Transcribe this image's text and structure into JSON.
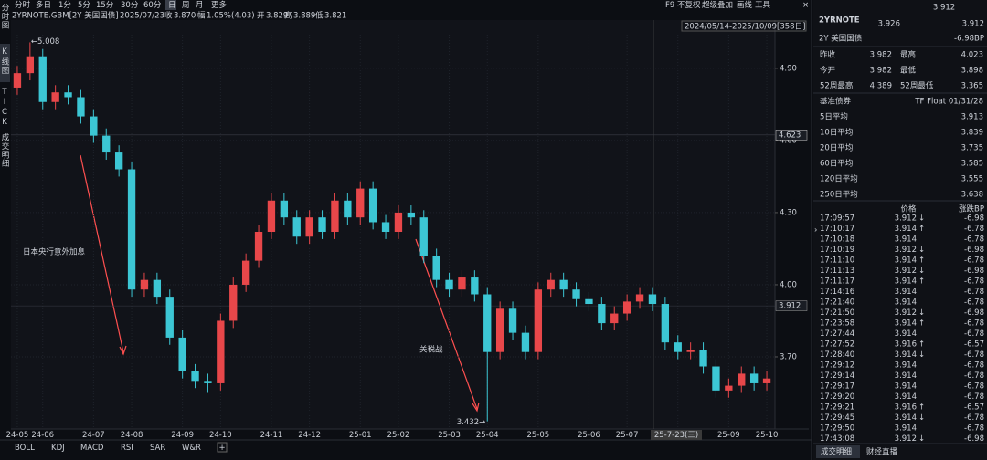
{
  "toolbar": {
    "left": [
      "分时",
      "多日",
      "1分",
      "5分",
      "15分",
      "30分",
      "60分",
      "日",
      "周",
      "月",
      "更多"
    ],
    "right": [
      "F9",
      "不复权",
      "超级叠加",
      "画线",
      "工具"
    ]
  },
  "side_tabs": [
    "分时图",
    "K线图",
    "TICK",
    "成交明细"
  ],
  "info": {
    "symbol": "2YRNOTE.GBM[2Y 美国国债]",
    "date": "2025/07/23",
    "items": [
      {
        "label": "收",
        "value": "3.870",
        "color": "#2fd06a"
      },
      {
        "label": "幅",
        "value": "1.05%(4.03)",
        "color": "#2fd06a"
      },
      {
        "label": "开",
        "value": "3.829",
        "color": "#e6e6e6"
      },
      {
        "label": "高",
        "value": "3.889",
        "color": "#2fd06a"
      },
      {
        "label": "低",
        "value": "3.821",
        "color": "#ff4d4d"
      }
    ]
  },
  "range": "2024/05/14-2025/10/09[358日]",
  "chart_data": {
    "type": "candlestick",
    "up_color": "#e8474a",
    "down_color": "#3cc6d4",
    "categories": [
      "24-05",
      null,
      "24-06",
      null,
      null,
      null,
      "24-07",
      null,
      null,
      "24-08",
      null,
      null,
      null,
      "24-09",
      null,
      null,
      "24-10",
      null,
      null,
      null,
      "24-11",
      null,
      null,
      "24-12",
      null,
      null,
      null,
      "25-01",
      null,
      null,
      "25-02",
      null,
      null,
      null,
      "25-03",
      null,
      null,
      "25-04",
      null,
      null,
      null,
      "25-05",
      null,
      null,
      null,
      "25-06",
      null,
      null,
      "25-07",
      null,
      null,
      null,
      "25-7-23(三)",
      null,
      null,
      null,
      "25-09",
      null,
      null,
      "25-10"
    ],
    "open": [
      4.82,
      4.88,
      4.95,
      4.76,
      4.8,
      4.78,
      4.7,
      4.62,
      4.55,
      4.48,
      3.98,
      4.02,
      3.95,
      3.78,
      3.64,
      3.6,
      3.59,
      3.85,
      4.0,
      4.1,
      4.22,
      4.35,
      4.28,
      4.2,
      4.28,
      4.22,
      4.35,
      4.28,
      4.4,
      4.26,
      4.22,
      4.3,
      4.28,
      4.12,
      4.02,
      3.98,
      4.03,
      3.96,
      3.72,
      3.9,
      3.8,
      3.72,
      3.98,
      4.02,
      3.98,
      3.94,
      3.92,
      3.84,
      3.88,
      3.93,
      3.96,
      3.92,
      3.76,
      3.72,
      3.73,
      3.66,
      3.56,
      3.58,
      3.63,
      3.59
    ],
    "high": [
      4.91,
      5.008,
      4.98,
      4.83,
      4.83,
      4.81,
      4.73,
      4.65,
      4.58,
      4.51,
      4.05,
      4.05,
      3.98,
      3.81,
      3.67,
      3.63,
      3.88,
      4.03,
      4.13,
      4.25,
      4.38,
      4.38,
      4.31,
      4.31,
      4.31,
      4.38,
      4.38,
      4.43,
      4.43,
      4.29,
      4.33,
      4.33,
      4.31,
      4.15,
      4.05,
      4.06,
      4.06,
      3.99,
      3.93,
      3.93,
      3.83,
      4.01,
      4.05,
      4.05,
      4.01,
      3.97,
      3.95,
      3.91,
      3.96,
      3.99,
      3.99,
      3.95,
      3.79,
      3.76,
      3.76,
      3.69,
      3.61,
      3.66,
      3.66,
      3.64
    ],
    "low": [
      4.79,
      4.85,
      4.73,
      4.73,
      4.75,
      4.67,
      4.59,
      4.52,
      4.45,
      3.95,
      3.95,
      3.92,
      3.75,
      3.61,
      3.57,
      3.55,
      3.56,
      3.82,
      3.97,
      4.07,
      4.19,
      4.25,
      4.17,
      4.17,
      4.19,
      4.19,
      4.25,
      4.25,
      4.23,
      4.19,
      4.19,
      4.25,
      4.09,
      3.99,
      3.95,
      3.95,
      3.93,
      3.432,
      3.69,
      3.77,
      3.69,
      3.69,
      3.95,
      3.95,
      3.91,
      3.89,
      3.81,
      3.81,
      3.85,
      3.9,
      3.89,
      3.73,
      3.69,
      3.69,
      3.63,
      3.53,
      3.53,
      3.55,
      3.56,
      3.56
    ],
    "close": [
      4.88,
      4.95,
      4.76,
      4.8,
      4.78,
      4.7,
      4.62,
      4.55,
      4.48,
      3.98,
      4.02,
      3.95,
      3.78,
      3.64,
      3.6,
      3.59,
      3.85,
      4.0,
      4.1,
      4.22,
      4.35,
      4.28,
      4.2,
      4.28,
      4.22,
      4.35,
      4.28,
      4.4,
      4.26,
      4.22,
      4.3,
      4.28,
      4.12,
      4.02,
      3.98,
      4.03,
      3.96,
      3.72,
      3.9,
      3.8,
      3.72,
      3.98,
      4.02,
      3.98,
      3.94,
      3.92,
      3.84,
      3.88,
      3.93,
      3.96,
      3.92,
      3.76,
      3.72,
      3.73,
      3.66,
      3.56,
      3.58,
      3.63,
      3.59,
      3.61
    ],
    "ylim": [
      3.4,
      5.04
    ],
    "yticks": [
      {
        "value": 3.7,
        "label": "3.70"
      },
      {
        "value": 4.0,
        "label": "4.00"
      },
      {
        "value": 4.3,
        "label": "4.30"
      },
      {
        "value": 4.6,
        "label": "4.60"
      },
      {
        "value": 4.9,
        "label": "4.90"
      }
    ],
    "price_lines": [
      {
        "value": 4.623,
        "label": "4.623",
        "color": "#cfcfcf"
      },
      {
        "value": 3.912,
        "label": "3.912",
        "color": "#9a9a9a"
      }
    ],
    "extremes": [
      {
        "label": "←5.008",
        "color": "#ff5a5a"
      },
      {
        "label": "3.432→",
        "color": "#2fd06a"
      }
    ],
    "annotations": [
      "日本央行意外加息",
      "关税战"
    ]
  },
  "indicators": [
    "BOLL",
    "KDJ",
    "MACD",
    "RSI",
    "SAR",
    "W&R"
  ],
  "quote": {
    "top": "3.912",
    "symbol": "2YRNOTE",
    "price": "3.926",
    "last": "3.912",
    "name": "2Y 美国国债",
    "change": "-6.98BP"
  },
  "stats": [
    [
      {
        "label": "昨收",
        "value": "3.982"
      },
      {
        "label": "最高",
        "value": "4.023",
        "color": "#2fd06a"
      }
    ],
    [
      {
        "label": "今开",
        "value": "3.982"
      },
      {
        "label": "最低",
        "value": "3.898",
        "color": "#ff4d4d"
      }
    ],
    [
      {
        "label": "52周最高",
        "value": "4.389"
      },
      {
        "label": "52周最低",
        "value": "3.365"
      }
    ]
  ],
  "stats2": [
    [
      "基准债券",
      "TF Float 01/31/28"
    ],
    [
      "5日平均",
      "3.913"
    ],
    [
      "10日平均",
      "3.839"
    ],
    [
      "20日平均",
      "3.735"
    ],
    [
      "60日平均",
      "3.585"
    ],
    [
      "120日平均",
      "3.555"
    ],
    [
      "250日平均",
      "3.638"
    ]
  ],
  "trades": {
    "headers": [
      "价格",
      "涨跌BP"
    ],
    "rows": [
      [
        "17:09:57",
        "3.912",
        "↓",
        "-6.98"
      ],
      [
        "17:10:17",
        "3.914",
        "↑",
        "-6.78"
      ],
      [
        "17:10:18",
        "3.914",
        null,
        "-6.78"
      ],
      [
        "17:10:19",
        "3.912",
        "↓",
        "-6.98"
      ],
      [
        "17:11:10",
        "3.914",
        "↑",
        "-6.78"
      ],
      [
        "17:11:13",
        "3.912",
        "↓",
        "-6.98"
      ],
      [
        "17:11:17",
        "3.914",
        "↑",
        "-6.78"
      ],
      [
        "17:14:16",
        "3.914",
        null,
        "-6.78"
      ],
      [
        "17:21:40",
        "3.914",
        null,
        "-6.78"
      ],
      [
        "17:21:50",
        "3.912",
        "↓",
        "-6.98"
      ],
      [
        "17:23:58",
        "3.914",
        "↑",
        "-6.78"
      ],
      [
        "17:27:44",
        "3.914",
        null,
        "-6.78"
      ],
      [
        "17:27:52",
        "3.916",
        "↑",
        "-6.57"
      ],
      [
        "17:28:40",
        "3.914",
        "↓",
        "-6.78"
      ],
      [
        "17:29:12",
        "3.914",
        null,
        "-6.78"
      ],
      [
        "17:29:14",
        "3.914",
        null,
        "-6.78"
      ],
      [
        "17:29:17",
        "3.914",
        null,
        "-6.78"
      ],
      [
        "17:29:20",
        "3.914",
        null,
        "-6.78"
      ],
      [
        "17:29:21",
        "3.916",
        "↑",
        "-6.57"
      ],
      [
        "17:29:45",
        "3.914",
        "↓",
        "-6.78"
      ],
      [
        "17:29:50",
        "3.914",
        null,
        "-6.78"
      ],
      [
        "17:43:08",
        "3.912",
        "↓",
        "-6.98"
      ]
    ]
  },
  "bottom_tabs": [
    "成交明细",
    "财经直播"
  ]
}
